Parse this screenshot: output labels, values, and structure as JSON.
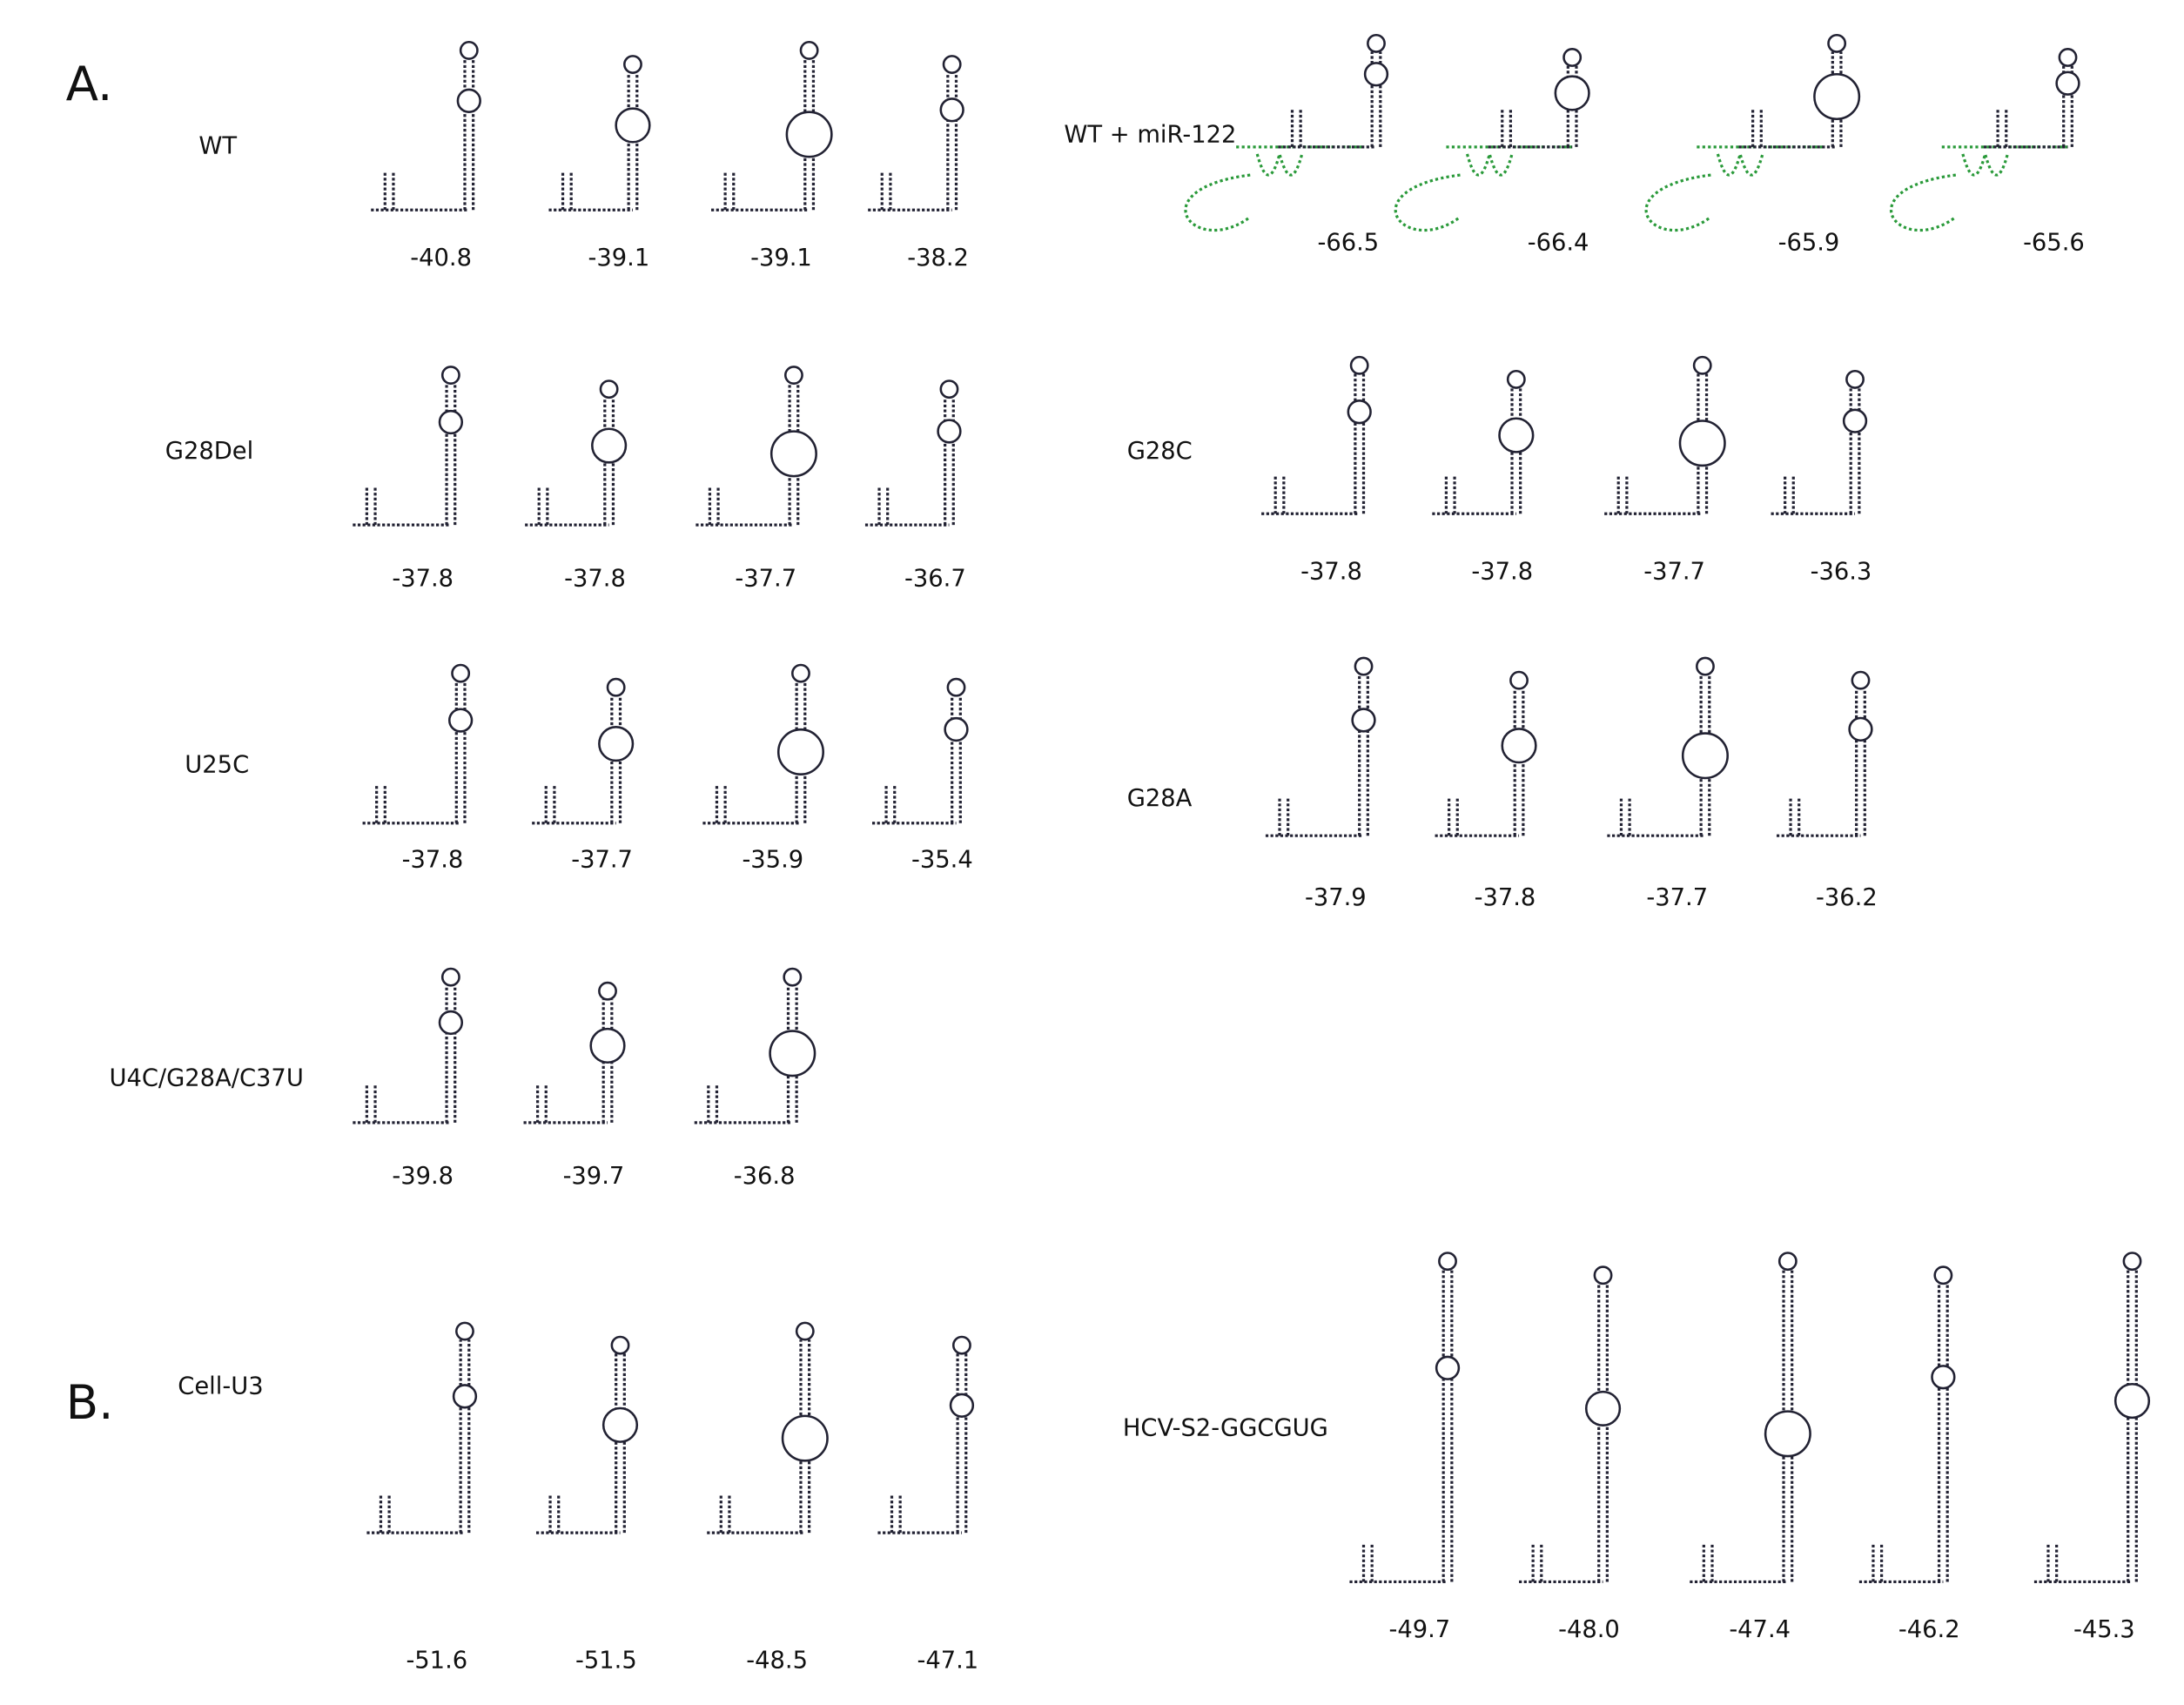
{
  "panels": [
    {
      "label": "A.",
      "groups": [
        {
          "name": "WT",
          "energies": [
            "-40.8",
            "-39.1",
            "-39.1",
            "-38.2"
          ]
        },
        {
          "name": "WT + miR-122",
          "energies": [
            "-66.5",
            "-66.4",
            "-65.9",
            "-65.6"
          ]
        },
        {
          "name": "G28Del",
          "energies": [
            "-37.8",
            "-37.8",
            "-37.7",
            "-36.7"
          ]
        },
        {
          "name": "G28C",
          "energies": [
            "-37.8",
            "-37.8",
            "-37.7",
            "-36.3"
          ]
        },
        {
          "name": "U25C",
          "energies": [
            "-37.8",
            "-37.7",
            "-35.9",
            "-35.4"
          ]
        },
        {
          "name": "G28A",
          "energies": [
            "-37.9",
            "-37.8",
            "-37.7",
            "-36.2"
          ]
        },
        {
          "name": "U4C/G28A/C37U",
          "energies": [
            "-39.8",
            "-39.7",
            "-36.8"
          ]
        }
      ]
    },
    {
      "label": "B.",
      "groups": [
        {
          "name": "Cell-U3",
          "energies": [
            "-51.6",
            "-51.5",
            "-48.5",
            "-47.1"
          ]
        },
        {
          "name": "HCV-S2-GGCGUG",
          "energies": [
            "-49.7",
            "-48.0",
            "-47.4",
            "-46.2",
            "-45.3"
          ]
        }
      ]
    }
  ]
}
